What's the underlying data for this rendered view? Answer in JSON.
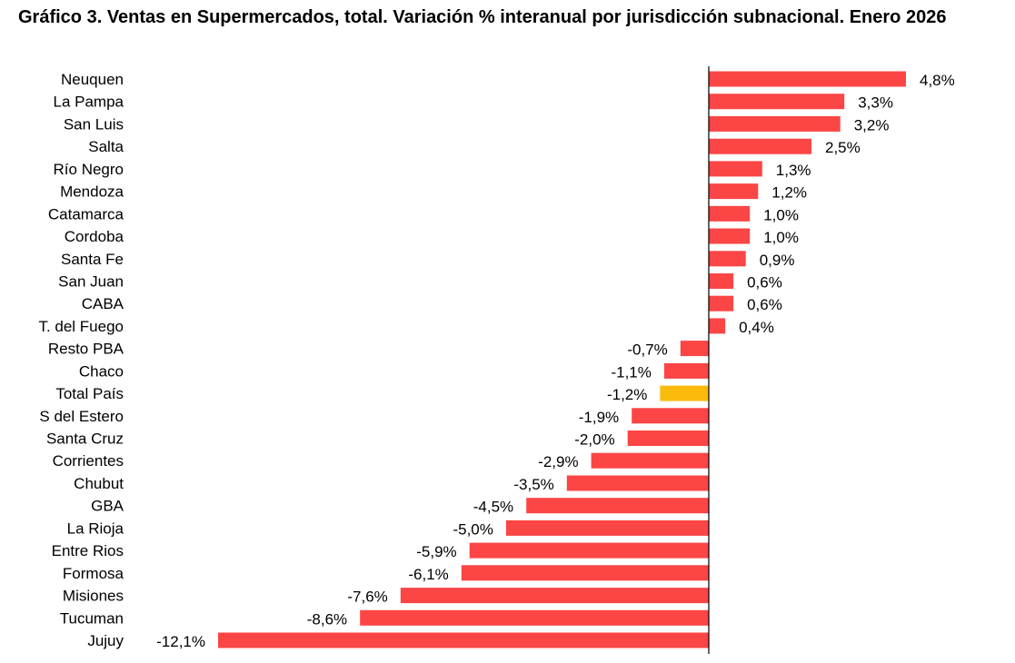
{
  "chart_data": {
    "type": "bar",
    "orientation": "horizontal",
    "title": "Gráfico 3. Ventas en Supermercados, total. Variación % interanual por jurisdicción subnacional. Enero 2026",
    "xlabel": "",
    "ylabel": "",
    "xlim": [
      -12.1,
      4.8
    ],
    "categories": [
      "Neuquen",
      "La Pampa",
      "San Luis",
      "Salta",
      "Río Negro",
      "Mendoza",
      "Catamarca",
      "Cordoba",
      "Santa Fe",
      "San Juan",
      "CABA",
      "T. del Fuego",
      "Resto PBA",
      "Chaco",
      "Total País",
      "S del Estero",
      "Santa Cruz",
      "Corrientes",
      "Chubut",
      "GBA",
      "La Rioja",
      "Entre Rios",
      "Formosa",
      "Misiones",
      "Tucuman",
      "Jujuy"
    ],
    "values": [
      4.8,
      3.3,
      3.2,
      2.5,
      1.3,
      1.2,
      1.0,
      1.0,
      0.9,
      0.6,
      0.6,
      0.4,
      -0.7,
      -1.1,
      -1.2,
      -1.9,
      -2.0,
      -2.9,
      -3.5,
      -4.5,
      -5.0,
      -5.9,
      -6.1,
      -7.6,
      -8.6,
      -12.1
    ],
    "value_labels": [
      "4,8%",
      "3,3%",
      "3,2%",
      "2,5%",
      "1,3%",
      "1,2%",
      "1,0%",
      "1,0%",
      "0,9%",
      "0,6%",
      "0,6%",
      "0,4%",
      "-0,7%",
      "-1,1%",
      "-1,2%",
      "-1,9%",
      "-2,0%",
      "-2,9%",
      "-3,5%",
      "-4,5%",
      "-5,0%",
      "-5,9%",
      "-6,1%",
      "-7,6%",
      "-8,6%",
      "-12,1%"
    ],
    "highlight_category": "Total País",
    "grid": false,
    "legend": "none"
  },
  "colors": {
    "bar": "#fc4545",
    "highlight": "#fbbb0c",
    "axis": "#000000"
  }
}
